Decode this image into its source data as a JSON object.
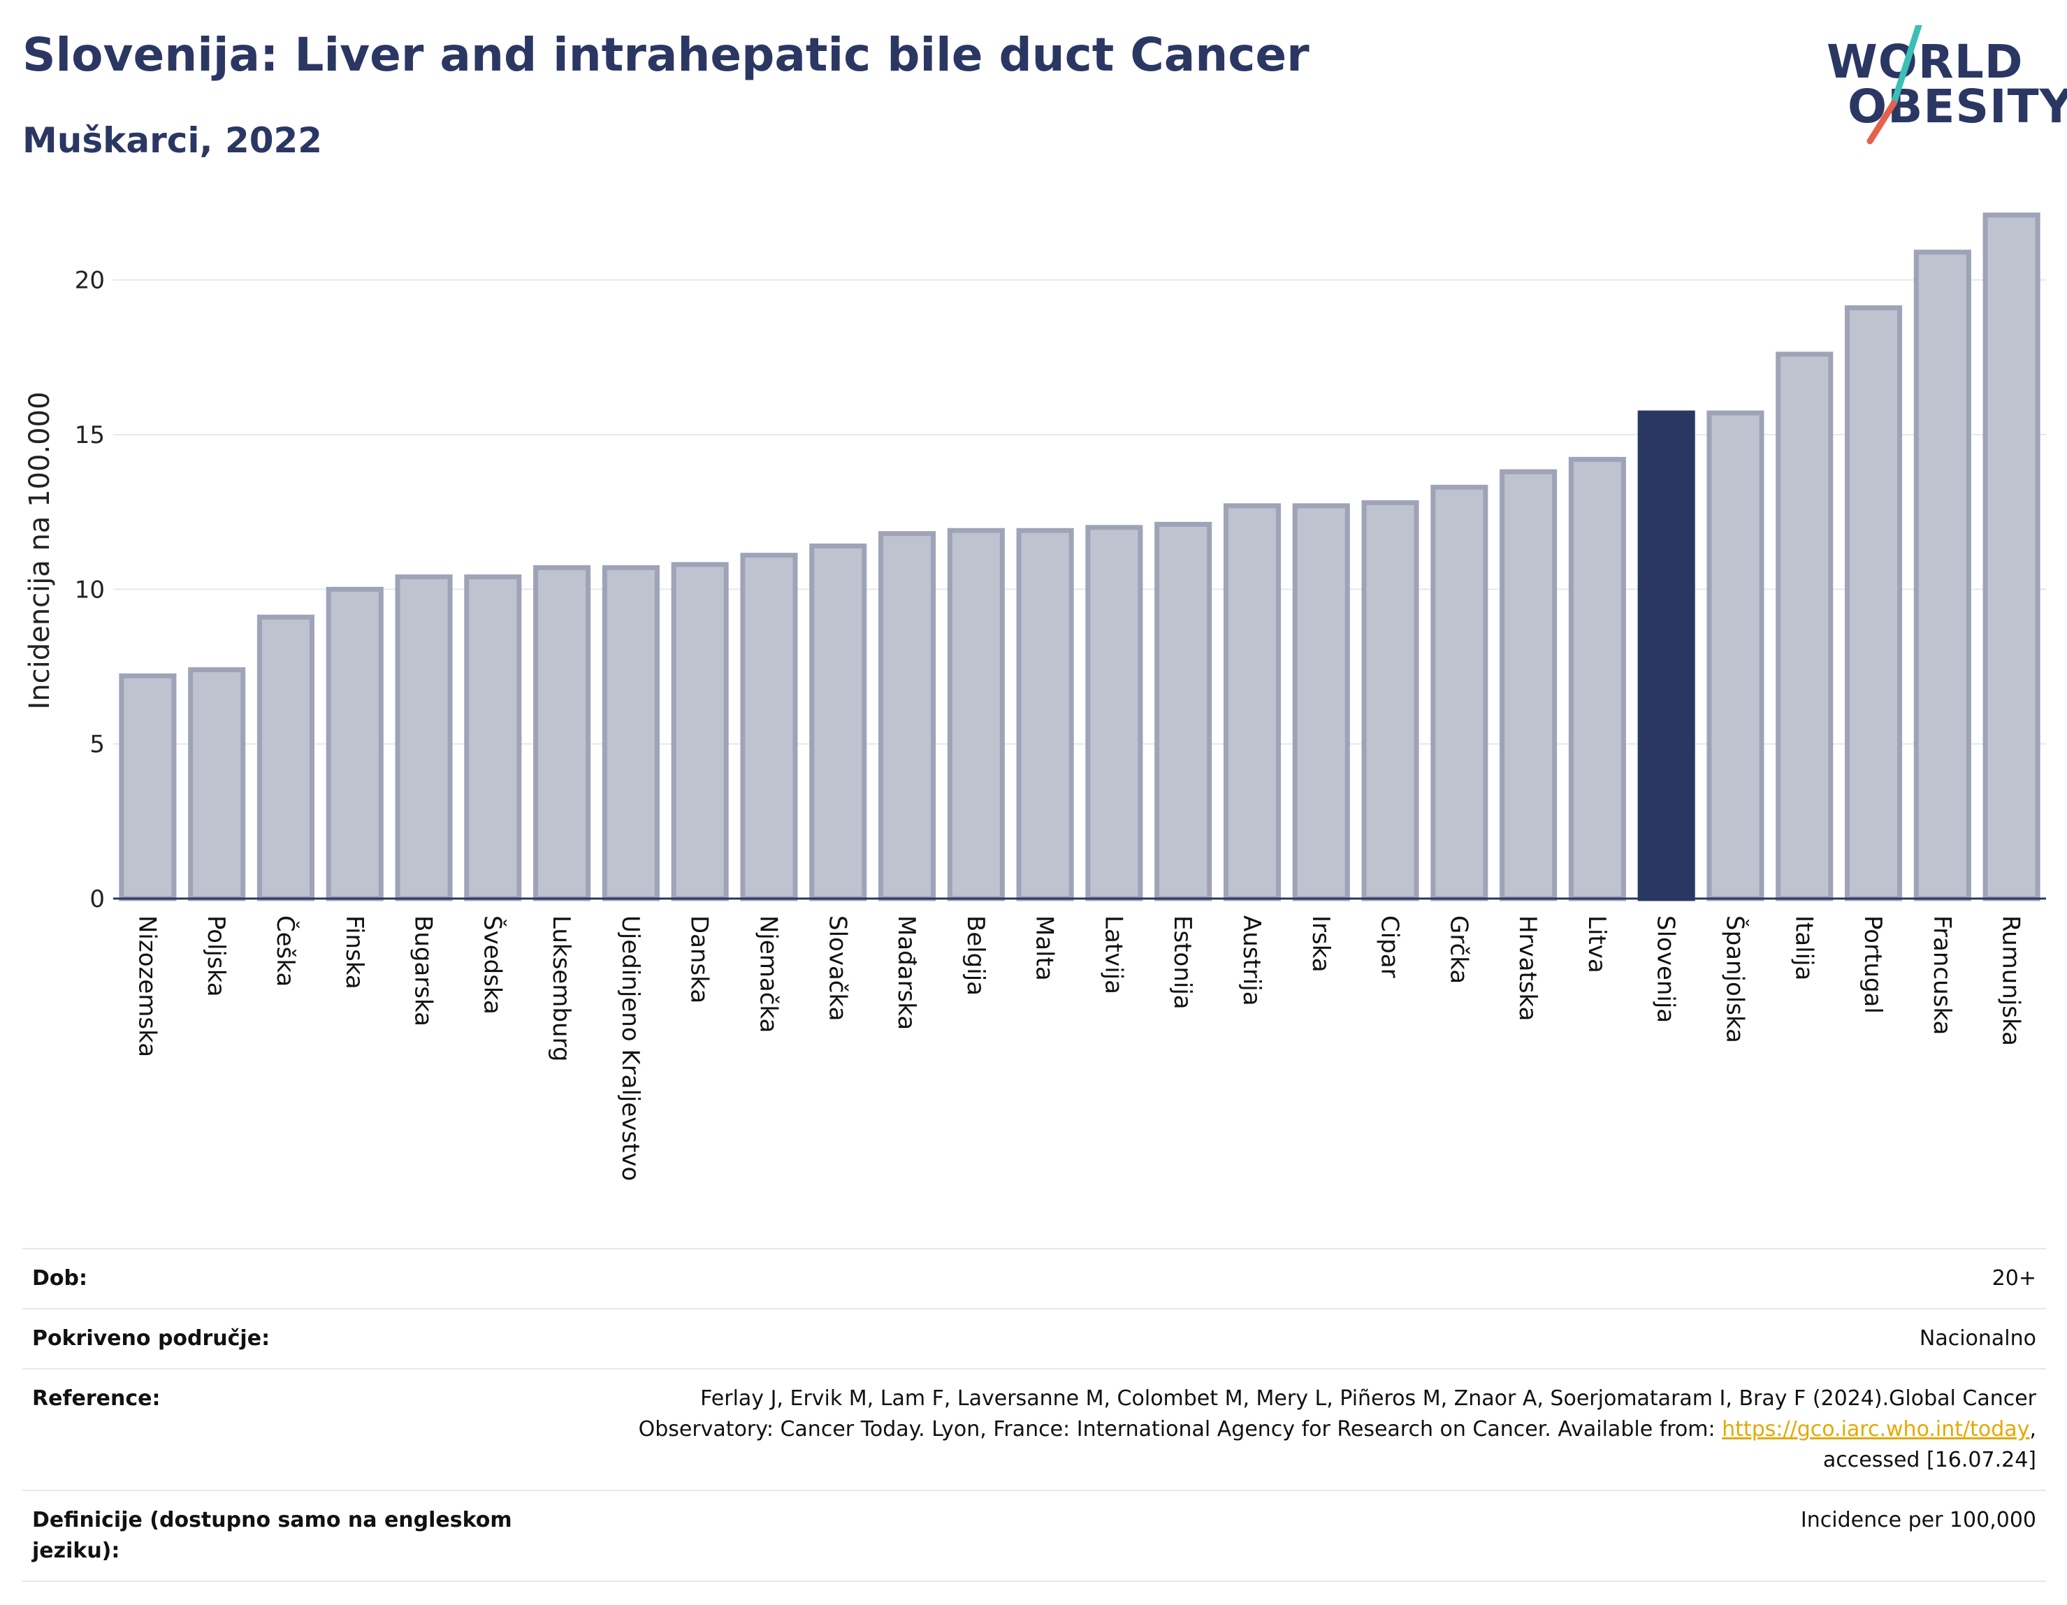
{
  "header": {
    "title": "Slovenija: Liver and intrahepatic bile duct Cancer",
    "subtitle": "Muškarci, 2022"
  },
  "logo": {
    "line1": "WORLD",
    "line2": "OBESITY",
    "colors": {
      "text": "#2b3763",
      "slash_top": "#3cbfb4",
      "slash_bottom": "#e8604c"
    }
  },
  "chart_data": {
    "type": "bar",
    "ylabel": "Incidencija na 100.000",
    "ylim": [
      0,
      22.5
    ],
    "yticks": [
      0,
      5,
      10,
      15,
      20
    ],
    "grid": true,
    "categories": [
      "Nizozemska",
      "Poljska",
      "Češka",
      "Finska",
      "Bugarska",
      "Švedska",
      "Luksemburg",
      "Ujedinjeno Kraljevstvo",
      "Danska",
      "Njemačka",
      "Slovačka",
      "Mađarska",
      "Belgija",
      "Malta",
      "Latvija",
      "Estonija",
      "Austrija",
      "Irska",
      "Cipar",
      "Grčka",
      "Hrvatska",
      "Litva",
      "Slovenija",
      "Španjolska",
      "Italija",
      "Portugal",
      "Francuska",
      "Rumunjska"
    ],
    "values": [
      7.2,
      7.4,
      9.1,
      10.0,
      10.4,
      10.4,
      10.7,
      10.7,
      10.8,
      11.1,
      11.4,
      11.8,
      11.9,
      11.9,
      12.0,
      12.1,
      12.7,
      12.7,
      12.8,
      13.3,
      13.8,
      14.2,
      15.7,
      15.7,
      17.6,
      19.1,
      20.9,
      22.1
    ],
    "highlight": "Slovenija",
    "colors": {
      "bar": "#bfc2cf",
      "bar_edge": "#9ea3b8",
      "highlight": "#2b3763",
      "grid": "#e6e8ee",
      "axis": "#2b3763"
    }
  },
  "meta": [
    {
      "label": "Dob:",
      "value": "20+"
    },
    {
      "label": "Pokriveno područje:",
      "value": "Nacionalno"
    },
    {
      "label": "Reference:",
      "value_pre": "Ferlay J, Ervik M, Lam F, Laversanne M, Colombet M, Mery L, Piñeros M, Znaor A, Soerjomataram I, Bray F (2024).Global Cancer Observatory: Cancer Today. Lyon, France: International Agency for Research on Cancer. Available from: ",
      "link": "https://gco.iarc.who.int/today",
      "value_post": ", accessed [16.07.24]"
    },
    {
      "label": "Definicije (dostupno samo na engleskom jeziku):",
      "value": "Incidence per 100,000"
    }
  ]
}
